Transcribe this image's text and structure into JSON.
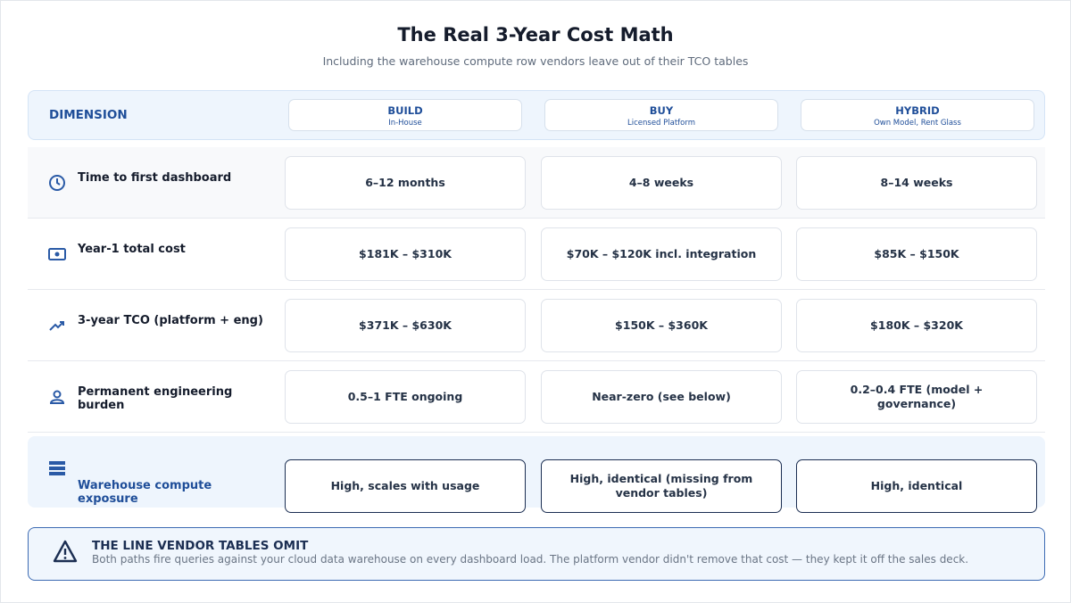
{
  "title": "The Real 3-Year Cost Math",
  "subtitle": "Including the warehouse compute row vendors leave out of their TCO tables",
  "header": {
    "dimension": "DIMENSION",
    "columns": [
      {
        "name": "BUILD",
        "sub": "In-House"
      },
      {
        "name": "BUY",
        "sub": "Licensed Platform"
      },
      {
        "name": "HYBRID",
        "sub": "Own Model, Rent Glass"
      }
    ]
  },
  "rows": [
    {
      "label": "Time to first dashboard",
      "cells": [
        "6–12 months",
        "4–8 weeks",
        "8–14 weeks"
      ]
    },
    {
      "label": "Year-1 total cost",
      "cells": [
        "$181K – $310K",
        "$70K – $120K incl. integration",
        "$85K – $150K"
      ]
    },
    {
      "label": "3-year TCO (platform + eng)",
      "cells": [
        "$371K – $630K",
        "$150K – $360K",
        "$180K – $320K"
      ]
    },
    {
      "label": "Permanent engineering burden",
      "cells": [
        "0.5–1 FTE ongoing",
        "Near-zero (see below)",
        "0.2–0.4 FTE (model + governance)"
      ]
    },
    {
      "label": "Warehouse compute exposure",
      "cells": [
        "High, scales with usage",
        "High, identical (missing from vendor tables)",
        "High, identical"
      ]
    }
  ],
  "callout": {
    "title": "THE LINE VENDOR TABLES OMIT",
    "text": "Both paths fire queries against your cloud data warehouse on every dashboard load. The platform vendor didn't remove that cost — they kept it off the sales deck."
  }
}
